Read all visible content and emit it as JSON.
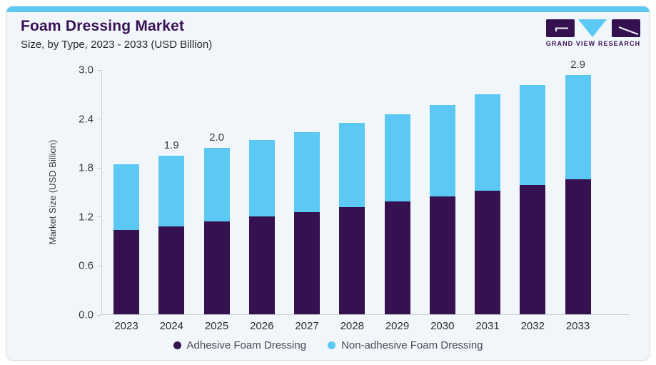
{
  "header": {
    "title": "Foam Dressing Market",
    "subtitle": "Size, by Type, 2023 - 2033 (USD Billion)",
    "logo_text": "GRAND VIEW RESEARCH"
  },
  "colors": {
    "accent_bar": "#5bc9f4",
    "title_purple": "#3a1055",
    "card_background": "#f0f6fa",
    "axis_line": "#c9ced4",
    "adhesive_purple": "#351150",
    "non_adhesive_blue": "#5bc9f4"
  },
  "chart_data": {
    "type": "bar",
    "stacked": true,
    "title": "Foam Dressing Market",
    "subtitle": "Size, by Type, 2023 - 2033 (USD Billion)",
    "xlabel": "",
    "ylabel": "Market Size (USD Billion)",
    "ylim": [
      0,
      3.0
    ],
    "yticks": [
      "0.0",
      "0.6",
      "1.2",
      "1.8",
      "2.4",
      "3.0"
    ],
    "grid": false,
    "legend_position": "bottom",
    "categories": [
      "2023",
      "2024",
      "2025",
      "2026",
      "2027",
      "2028",
      "2029",
      "2030",
      "2031",
      "2032",
      "2033"
    ],
    "series": [
      {
        "name": "Adhesive Foam Dressing",
        "color": "#351150",
        "values": [
          1.03,
          1.08,
          1.14,
          1.2,
          1.25,
          1.31,
          1.38,
          1.44,
          1.51,
          1.58,
          1.65
        ]
      },
      {
        "name": "Non-adhesive Foam Dressing",
        "color": "#5bc9f4",
        "values": [
          0.81,
          0.86,
          0.9,
          0.93,
          0.98,
          1.03,
          1.07,
          1.12,
          1.18,
          1.23,
          1.28
        ]
      }
    ],
    "totals": [
      1.84,
      1.94,
      2.04,
      2.13,
      2.23,
      2.34,
      2.45,
      2.56,
      2.69,
      2.81,
      2.93
    ],
    "bar_labels": {
      "2024": "1.9",
      "2025": "2.0",
      "2033": "2.9"
    }
  }
}
